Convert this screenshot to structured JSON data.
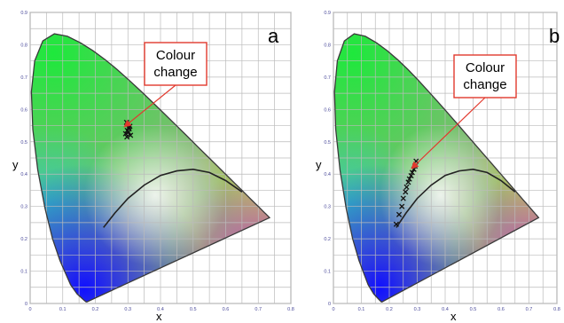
{
  "panels": [
    {
      "id": "a",
      "letter": "a",
      "axis_label_x": "x",
      "axis_label_y": "y",
      "callout": [
        "Colour",
        "change"
      ],
      "x_ticks": [
        "0",
        "0.1",
        "0.2",
        "0.3",
        "0.4",
        "0.5",
        "0.6",
        "0.7",
        "0.8"
      ],
      "y_ticks": [
        "0",
        "0.1",
        "0.2",
        "0.3",
        "0.4",
        "0.5",
        "0.6",
        "0.7",
        "0.8",
        "0.9"
      ]
    },
    {
      "id": "b",
      "letter": "b",
      "axis_label_x": "x",
      "axis_label_y": "y",
      "callout": [
        "Colour",
        "change"
      ],
      "x_ticks": [
        "0",
        "0.1",
        "0.2",
        "0.3",
        "0.4",
        "0.5",
        "0.6",
        "0.7",
        "0.8"
      ],
      "y_ticks": [
        "0",
        "0.1",
        "0.2",
        "0.3",
        "0.4",
        "0.5",
        "0.6",
        "0.7",
        "0.8",
        "0.9"
      ]
    }
  ],
  "chart_data": [
    {
      "type": "scatter",
      "panel": "a",
      "xlim": [
        0,
        0.8
      ],
      "ylim": [
        0,
        0.9
      ],
      "grid": true,
      "series": [
        {
          "marker": "x",
          "color": "#111111",
          "x": [
            0.293,
            0.298,
            0.303,
            0.3,
            0.296,
            0.306,
            0.302,
            0.308,
            0.297,
            0.304
          ],
          "y": [
            0.525,
            0.535,
            0.545,
            0.555,
            0.56,
            0.548,
            0.53,
            0.52,
            0.515,
            0.54
          ]
        }
      ],
      "curve": {
        "color": "#222222",
        "x": [
          0.225,
          0.26,
          0.3,
          0.35,
          0.4,
          0.45,
          0.5,
          0.55,
          0.6,
          0.65
        ],
        "y": [
          0.235,
          0.28,
          0.325,
          0.366,
          0.396,
          0.41,
          0.415,
          0.405,
          0.38,
          0.345
        ]
      }
    },
    {
      "type": "scatter",
      "panel": "b",
      "xlim": [
        0,
        0.8
      ],
      "ylim": [
        0,
        0.9
      ],
      "grid": true,
      "series": [
        {
          "marker": "x",
          "color": "#111111",
          "x": [
            0.225,
            0.235,
            0.245,
            0.25,
            0.258,
            0.262,
            0.268,
            0.272,
            0.278,
            0.282,
            0.288,
            0.292,
            0.296
          ],
          "y": [
            0.245,
            0.275,
            0.3,
            0.325,
            0.345,
            0.36,
            0.375,
            0.385,
            0.395,
            0.405,
            0.415,
            0.425,
            0.44
          ]
        }
      ],
      "curve": {
        "color": "#222222",
        "x": [
          0.225,
          0.26,
          0.3,
          0.35,
          0.4,
          0.45,
          0.5,
          0.55,
          0.6,
          0.65
        ],
        "y": [
          0.235,
          0.28,
          0.325,
          0.366,
          0.396,
          0.41,
          0.415,
          0.405,
          0.38,
          0.345
        ]
      }
    }
  ]
}
